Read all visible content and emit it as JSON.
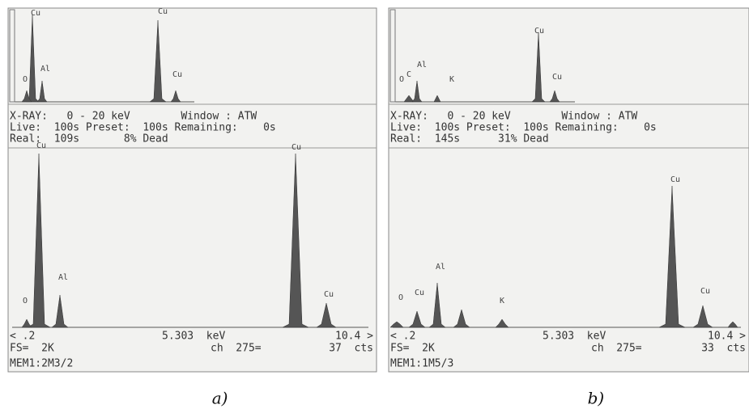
{
  "panels": [
    {
      "caption": "a)",
      "header": [
        "X-RAY:   0 - 20 keV        Window : ATW",
        "Live:  100s Preset:  100s Remaining:    0s",
        "Real:  109s       8% Dead"
      ],
      "top_labels": [
        "O",
        "Cu",
        "Al",
        "Cu",
        "Cu"
      ],
      "bottom_labels": [
        "O",
        "Cu",
        "Al",
        "Cu",
        "Cu"
      ],
      "footer": {
        "left": "< .2",
        "center": "5.303  keV",
        "right": "10.4 >",
        "fs": "FS=  2K",
        "ch": "ch  275=",
        "cts": "37  cts",
        "mem": "MEM1:2M3/2"
      }
    },
    {
      "caption": "b)",
      "header": [
        "X-RAY:   0 - 20 keV        Window : ATW",
        "Live:  100s Preset:  100s Remaining:    0s",
        "Real:  145s      31% Dead"
      ],
      "top_labels": [
        "O",
        "C",
        "Al",
        "K",
        "Cu",
        "Cu"
      ],
      "bottom_labels": [
        "O",
        "Cu",
        "Al",
        "K",
        "Cu",
        "Cu"
      ],
      "footer": {
        "left": "< .2",
        "center": "5.303  keV",
        "right": "10.4 >",
        "fs": "FS=  2K",
        "ch": "ch  275=",
        "cts": "33  cts",
        "mem": "MEM1:1M5/3"
      }
    }
  ]
}
